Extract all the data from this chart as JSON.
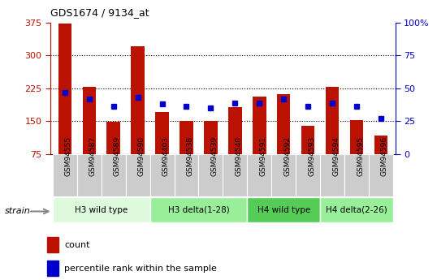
{
  "title": "GDS1674 / 9134_at",
  "samples": [
    "GSM94555",
    "GSM94587",
    "GSM94589",
    "GSM94590",
    "GSM94403",
    "GSM94538",
    "GSM94539",
    "GSM94540",
    "GSM94591",
    "GSM94592",
    "GSM94593",
    "GSM94594",
    "GSM94595",
    "GSM94596"
  ],
  "counts": [
    372,
    228,
    149,
    320,
    170,
    150,
    150,
    182,
    205,
    212,
    140,
    228,
    152,
    118
  ],
  "percentiles": [
    47,
    42,
    36,
    43,
    38,
    36,
    35,
    39,
    39,
    42,
    36,
    39,
    36,
    27
  ],
  "bar_color": "#bb1100",
  "dot_color": "#0000cc",
  "ylim_left": [
    75,
    375
  ],
  "ylim_right": [
    0,
    100
  ],
  "yticks_left": [
    75,
    150,
    225,
    300,
    375
  ],
  "yticks_right": [
    0,
    25,
    50,
    75,
    100
  ],
  "groups": [
    {
      "label": "H3 wild type",
      "start": 0,
      "end": 4,
      "color": "#ddfadd"
    },
    {
      "label": "H3 delta(1-28)",
      "start": 4,
      "end": 8,
      "color": "#99ee99"
    },
    {
      "label": "H4 wild type",
      "start": 8,
      "end": 11,
      "color": "#55cc55"
    },
    {
      "label": "H4 delta(2-26)",
      "start": 11,
      "end": 14,
      "color": "#99ee99"
    }
  ],
  "xtick_bg": "#cccccc",
  "plot_bg": "#ffffff",
  "strain_label": "strain",
  "legend_count": "count",
  "legend_pct": "percentile rank within the sample",
  "grid_yticks": [
    150,
    225,
    300
  ]
}
